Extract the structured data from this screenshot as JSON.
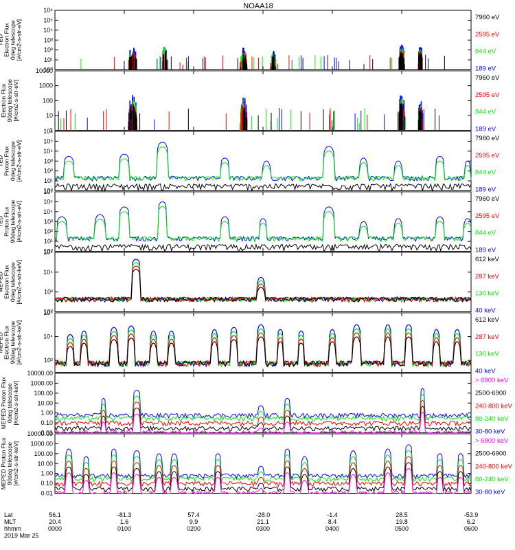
{
  "title": "NOAA18",
  "date": "2019 Mar 25",
  "footer": {
    "row_labels": [
      "Lat",
      "MLT",
      "hhmm"
    ],
    "ticks": [
      {
        "lat": "56.1",
        "mlt": "20.4",
        "hhmm": "0000"
      },
      {
        "lat": "-81.3",
        "mlt": "1.6",
        "hhmm": "0100"
      },
      {
        "lat": "57.4",
        "mlt": "9.9",
        "hhmm": "0200"
      },
      {
        "lat": "-28.0",
        "mlt": "21.1",
        "hhmm": "0300"
      },
      {
        "lat": "-1.4",
        "mlt": "8.4",
        "hhmm": "0400"
      },
      {
        "lat": "28.5",
        "mlt": "19.8",
        "hhmm": "0500"
      },
      {
        "lat": "-53.9",
        "mlt": "6.2",
        "hhmm": "0600"
      }
    ]
  },
  "colors": {
    "black": "#000000",
    "red": "#ff0000",
    "green": "#00ee00",
    "blue": "#0000ff",
    "magenta": "#ff00ff"
  },
  "chart_data": [
    {
      "type": "line",
      "ylabel": [
        "TED",
        "Electron Flux",
        "0deg telescope",
        "[#/cm2-s-str-eV]"
      ],
      "yscale": "log",
      "ylim": [
        1,
        1000000
      ],
      "yticks": [
        {
          "v": 1,
          "l": "10⁰"
        },
        {
          "v": 10,
          "l": "10¹"
        },
        {
          "v": 100,
          "l": "10²"
        },
        {
          "v": 1000,
          "l": "10³"
        },
        {
          "v": 10000,
          "l": "10⁴"
        },
        {
          "v": 100000,
          "l": "10⁵"
        },
        {
          "v": 1000000,
          "l": "10⁶"
        }
      ],
      "legend": [
        {
          "label": "7960 eV",
          "color": "#000000"
        },
        {
          "label": "2595 eV",
          "color": "#ff0000"
        },
        {
          "label": "844 eV",
          "color": "#00ee00"
        },
        {
          "label": "189 eV",
          "color": "#0000ff"
        }
      ],
      "style": "sparse",
      "bursts": [
        [
          1.12,
          0.06,
          150
        ],
        [
          1.58,
          0.03,
          300
        ],
        [
          2.72,
          0.05,
          150
        ],
        [
          3.15,
          0.04,
          80
        ],
        [
          5.0,
          0.04,
          300
        ],
        [
          5.27,
          0.03,
          200
        ]
      ]
    },
    {
      "type": "line",
      "ylabel": [
        "Electron Flux",
        "90deg telescope",
        "[#/cm2-s-str-eV]"
      ],
      "yscale": "log",
      "ylim": [
        1,
        10000
      ],
      "yticks": [
        {
          "v": 1,
          "l": "1"
        },
        {
          "v": 10,
          "l": "10"
        },
        {
          "v": 100,
          "l": "100"
        },
        {
          "v": 1000,
          "l": "1000"
        },
        {
          "v": 10000,
          "l": "10000"
        }
      ],
      "legend": [
        {
          "label": "7960 eV",
          "color": "#000000"
        },
        {
          "label": "2595 eV",
          "color": "#ff0000"
        },
        {
          "label": "844 eV",
          "color": "#00ee00"
        },
        {
          "label": "189 eV",
          "color": "#0000ff"
        }
      ],
      "style": "sparse",
      "bursts": [
        [
          1.12,
          0.06,
          200
        ],
        [
          2.72,
          0.05,
          150
        ],
        [
          5.0,
          0.04,
          300
        ],
        [
          5.27,
          0.03,
          100
        ]
      ]
    },
    {
      "type": "line",
      "ylabel": [
        "TED",
        "Proton Flux",
        "0deg telescope",
        "[#/cm2-s-str-eV]"
      ],
      "yscale": "log",
      "ylim": [
        1,
        1000000
      ],
      "yticks": [
        {
          "v": 1,
          "l": "10⁰"
        },
        {
          "v": 10,
          "l": "10¹"
        },
        {
          "v": 100,
          "l": "10²"
        },
        {
          "v": 1000,
          "l": "10³"
        },
        {
          "v": 10000,
          "l": "10⁴"
        },
        {
          "v": 100000,
          "l": "10⁵"
        },
        {
          "v": 1000000,
          "l": "10⁶"
        }
      ],
      "legend": [
        {
          "label": "7960 eV",
          "color": "#000000"
        },
        {
          "label": "2595 eV",
          "color": "#ff0000"
        },
        {
          "label": "844 eV",
          "color": "#00ee00"
        },
        {
          "label": "189 eV",
          "color": "#0000ff"
        }
      ],
      "style": "proton",
      "bursts": [
        [
          0.2,
          0.08,
          3000
        ],
        [
          1.0,
          0.08,
          5000
        ],
        [
          1.55,
          0.08,
          80000
        ],
        [
          2.45,
          0.07,
          2000
        ],
        [
          3.05,
          0.06,
          1000
        ],
        [
          3.95,
          0.08,
          30000
        ],
        [
          4.45,
          0.06,
          2000
        ],
        [
          4.95,
          0.06,
          1000
        ],
        [
          5.55,
          0.07,
          3000
        ],
        [
          5.95,
          0.05,
          1000
        ]
      ]
    },
    {
      "type": "line",
      "ylabel": [
        "TED",
        "Proton Flux",
        "90deg telescope",
        "[#/cm2-s-str-eV]"
      ],
      "yscale": "log",
      "ylim": [
        1,
        1000000
      ],
      "yticks": [
        {
          "v": 1,
          "l": "10⁰"
        },
        {
          "v": 10,
          "l": "10¹"
        },
        {
          "v": 100,
          "l": "10²"
        },
        {
          "v": 1000,
          "l": "10³"
        },
        {
          "v": 10000,
          "l": "10⁴"
        },
        {
          "v": 100000,
          "l": "10⁵"
        },
        {
          "v": 1000000,
          "l": "10⁶"
        }
      ],
      "legend": [
        {
          "label": "7960 eV",
          "color": "#000000"
        },
        {
          "label": "2595 eV",
          "color": "#ff0000"
        },
        {
          "label": "844 eV",
          "color": "#00ee00"
        },
        {
          "label": "189 eV",
          "color": "#0000ff"
        }
      ],
      "style": "proton",
      "bursts": [
        [
          0.1,
          0.08,
          3000
        ],
        [
          0.65,
          0.08,
          5000
        ],
        [
          1.0,
          0.08,
          30000
        ],
        [
          1.55,
          0.07,
          100000
        ],
        [
          2.45,
          0.07,
          3000
        ],
        [
          3.0,
          0.06,
          2000
        ],
        [
          3.95,
          0.08,
          30000
        ],
        [
          4.45,
          0.06,
          1000
        ],
        [
          4.95,
          0.06,
          2000
        ],
        [
          5.55,
          0.07,
          3000
        ],
        [
          5.95,
          0.06,
          2000
        ]
      ]
    },
    {
      "type": "line",
      "ylabel": [
        "MEPED",
        "Electron Flux",
        "0deg telescope",
        "[#/cm2-s-str-keV]"
      ],
      "yscale": "log",
      "ylim": [
        1,
        1000000
      ],
      "yticks": [
        {
          "v": 1,
          "l": "10⁰"
        },
        {
          "v": 100,
          "l": "10²"
        },
        {
          "v": 10000,
          "l": "10⁴"
        },
        {
          "v": 1000000,
          "l": "10⁶"
        }
      ],
      "legend": [
        {
          "label": "612 keV",
          "color": "#000000"
        },
        {
          "label": "287 keV",
          "color": "#ff0000"
        },
        {
          "label": "130 keV",
          "color": "#00ee00"
        },
        {
          "label": "40 keV",
          "color": "#0000ff"
        }
      ],
      "style": "meped0",
      "bursts": [
        [
          1.17,
          0.07,
          200000
        ],
        [
          2.97,
          0.06,
          3000
        ]
      ]
    },
    {
      "type": "line",
      "ylabel": [
        "MEPED",
        "Electron Flux",
        "90deg telescope",
        "[#/cm2-s-str-keV]"
      ],
      "yscale": "log",
      "ylim": [
        10,
        1000000
      ],
      "yticks": [
        {
          "v": 100,
          "l": "10²"
        },
        {
          "v": 10000,
          "l": "10⁴"
        },
        {
          "v": 1000000,
          "l": "10⁶"
        }
      ],
      "legend": [
        {
          "label": "612 keV",
          "color": "#000000"
        },
        {
          "label": "287 keV",
          "color": "#ff0000"
        },
        {
          "label": "130 keV",
          "color": "#00ee00"
        },
        {
          "label": "40 keV",
          "color": "#0000ff"
        }
      ],
      "style": "meped90",
      "bursts": [
        [
          0.22,
          0.06,
          15000
        ],
        [
          0.42,
          0.05,
          30000
        ],
        [
          0.85,
          0.06,
          60000
        ],
        [
          1.1,
          0.06,
          80000
        ],
        [
          1.42,
          0.05,
          30000
        ],
        [
          1.68,
          0.05,
          30000
        ],
        [
          2.3,
          0.05,
          40000
        ],
        [
          2.58,
          0.06,
          60000
        ],
        [
          2.97,
          0.06,
          100000
        ],
        [
          3.25,
          0.05,
          40000
        ],
        [
          3.55,
          0.05,
          30000
        ],
        [
          4.0,
          0.05,
          40000
        ],
        [
          4.35,
          0.06,
          100000
        ],
        [
          4.8,
          0.05,
          100000
        ],
        [
          5.1,
          0.06,
          100000
        ],
        [
          5.5,
          0.05,
          40000
        ],
        [
          5.8,
          0.05,
          40000
        ]
      ]
    },
    {
      "type": "line",
      "ylabel": [
        "MEPED Proton Flux",
        "0deg telescope",
        "[#/cm2-s-str-keV]"
      ],
      "yscale": "log",
      "ylim": [
        0.01,
        10000
      ],
      "yticks": [
        {
          "v": 0.01,
          "l": "0.01"
        },
        {
          "v": 0.1,
          "l": "0.10"
        },
        {
          "v": 1,
          "l": "1.00"
        },
        {
          "v": 10,
          "l": "10.00"
        },
        {
          "v": 100,
          "l": "100.00"
        },
        {
          "v": 1000,
          "l": "1000.00"
        },
        {
          "v": 10000,
          "l": "10000.00"
        }
      ],
      "legend": [
        {
          "label": "> 6900 keV",
          "color": "#ff00ff"
        },
        {
          "label": "2500-6900",
          "color": "#000000"
        },
        {
          "label": "240-800 keV",
          "color": "#ff0000"
        },
        {
          "label": "80-240 keV",
          "color": "#00ee00"
        },
        {
          "label": "30-80 keV",
          "color": "#0000ff"
        }
      ],
      "style": "proton_meped",
      "bursts": [
        [
          1.18,
          0.06,
          200
        ],
        [
          2.97,
          0.05,
          5
        ],
        [
          0.7,
          0.04,
          30
        ],
        [
          3.35,
          0.05,
          30
        ],
        [
          5.3,
          0.04,
          300
        ]
      ]
    },
    {
      "type": "line",
      "ylabel": [
        "MEPED Proton Flux",
        "90deg telescope",
        "[#/cm2-s-str-keV]"
      ],
      "yscale": "log",
      "ylim": [
        0.01,
        10000
      ],
      "yticks": [
        {
          "v": 0.01,
          "l": "0.01"
        },
        {
          "v": 0.1,
          "l": "0.10"
        },
        {
          "v": 1,
          "l": "1.00"
        },
        {
          "v": 10,
          "l": "10.00"
        },
        {
          "v": 100,
          "l": "100.00"
        },
        {
          "v": 1000,
          "l": "1000.00"
        },
        {
          "v": 10000,
          "l": "10000.00"
        }
      ],
      "legend": [
        {
          "label": "> 6900 keV",
          "color": "#ff00ff"
        },
        {
          "label": "2500-6900",
          "color": "#000000"
        },
        {
          "label": "240-800 keV",
          "color": "#ff0000"
        },
        {
          "label": "80-240 keV",
          "color": "#00ee00"
        },
        {
          "label": "30-80 keV",
          "color": "#0000ff"
        }
      ],
      "style": "proton_meped",
      "bursts": [
        [
          0.2,
          0.05,
          300
        ],
        [
          0.45,
          0.05,
          50
        ],
        [
          0.85,
          0.05,
          300
        ],
        [
          1.18,
          0.06,
          200
        ],
        [
          1.5,
          0.05,
          100
        ],
        [
          1.72,
          0.05,
          100
        ],
        [
          2.35,
          0.05,
          100
        ],
        [
          2.97,
          0.05,
          5
        ],
        [
          3.35,
          0.05,
          300
        ],
        [
          3.6,
          0.05,
          50
        ],
        [
          4.3,
          0.05,
          200
        ],
        [
          4.8,
          0.05,
          300
        ],
        [
          5.1,
          0.06,
          800
        ],
        [
          5.55,
          0.05,
          100
        ],
        [
          5.85,
          0.05,
          100
        ]
      ]
    }
  ]
}
